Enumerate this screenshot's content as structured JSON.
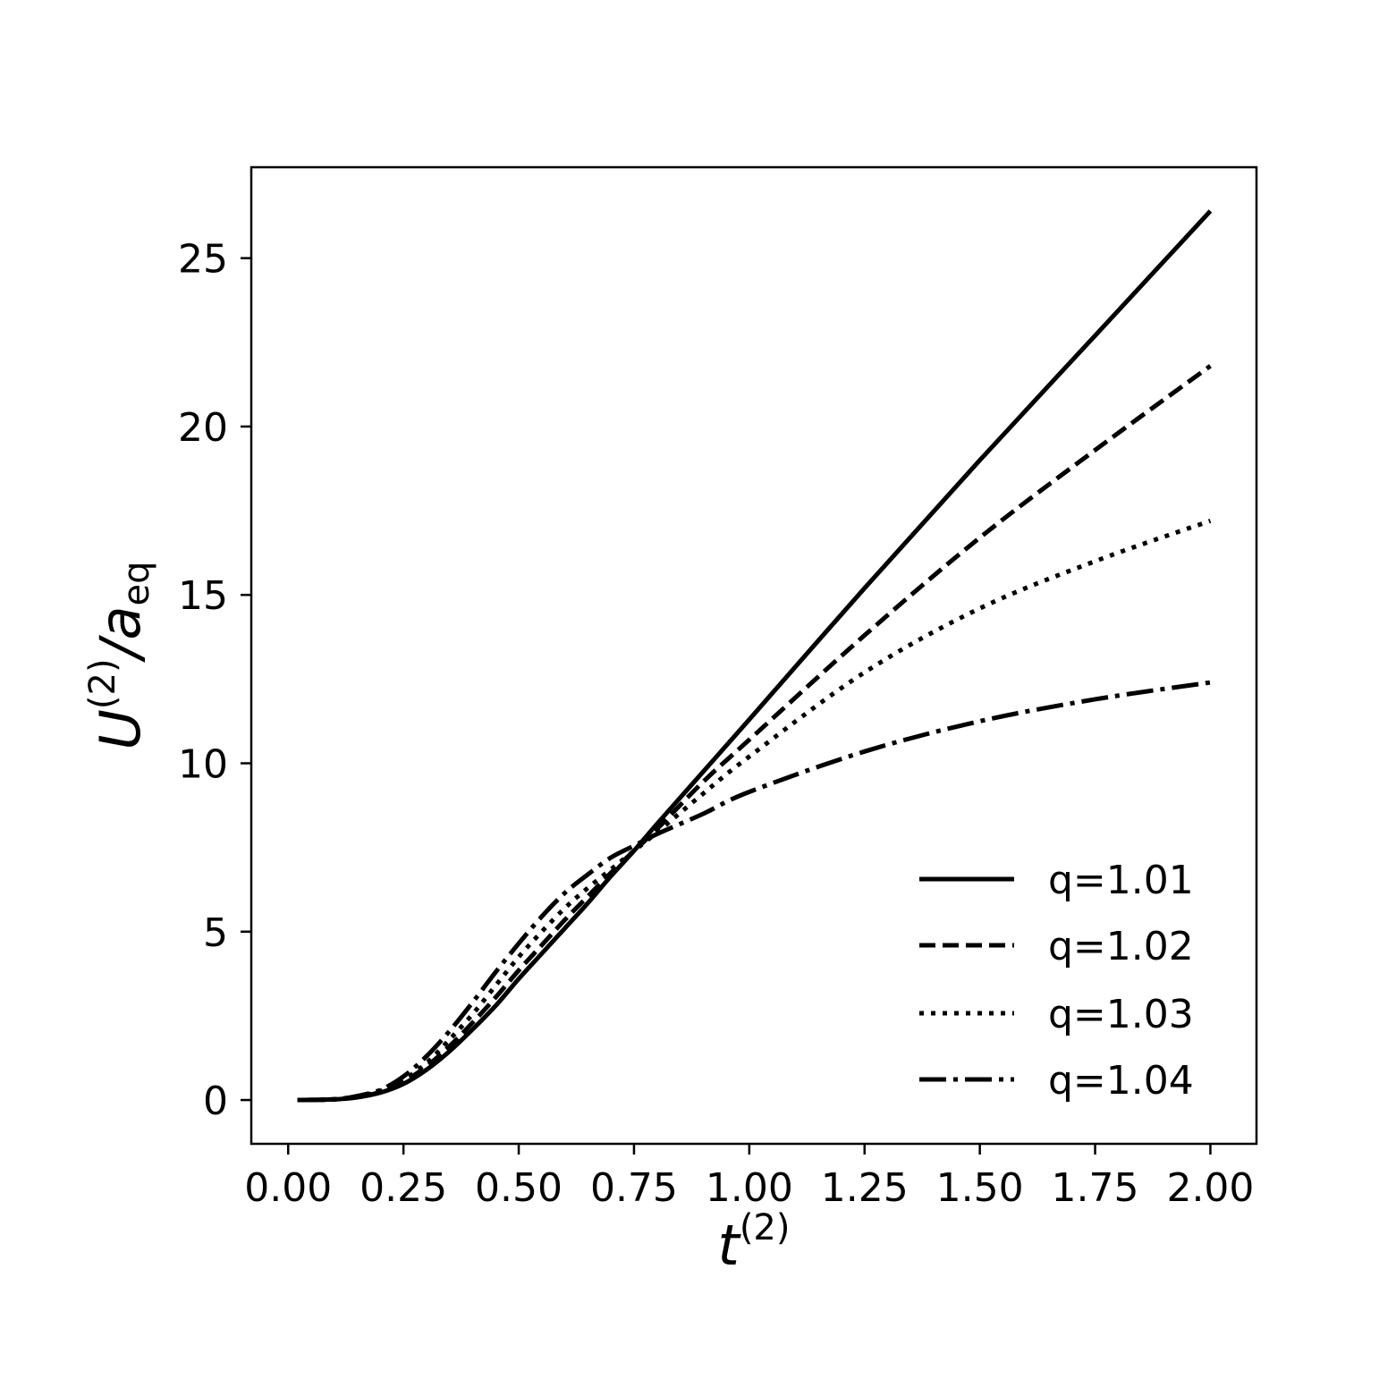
{
  "chart_data": {
    "type": "line",
    "title": "",
    "xlabel": {
      "base": "t",
      "sup": "(2)"
    },
    "ylabel": {
      "base": "U",
      "sup": "(2)",
      "mid": "/a",
      "sub": "eq"
    },
    "xlim": [
      -0.08,
      2.1
    ],
    "ylim": [
      -1.3,
      27.7
    ],
    "xticks": [
      0.0,
      0.25,
      0.5,
      0.75,
      1.0,
      1.25,
      1.5,
      1.75,
      2.0
    ],
    "xtick_labels": [
      "0.00",
      "0.25",
      "0.50",
      "0.75",
      "1.00",
      "1.25",
      "1.50",
      "1.75",
      "2.00"
    ],
    "yticks": [
      0,
      5,
      10,
      15,
      20,
      25
    ],
    "ytick_labels": [
      "0",
      "5",
      "10",
      "15",
      "20",
      "25"
    ],
    "grid": false,
    "legend_position": "lower-right",
    "line_color": "#000000",
    "series": [
      {
        "name": "q=1.01",
        "style": "solid",
        "x": [
          0.02,
          0.1,
          0.15,
          0.2,
          0.25,
          0.3,
          0.35,
          0.4,
          0.45,
          0.5,
          0.55,
          0.6,
          0.65,
          0.7,
          0.75,
          0.8,
          0.9,
          1.0,
          1.25,
          1.5,
          1.75,
          2.0
        ],
        "y": [
          0.0,
          0.02,
          0.08,
          0.22,
          0.48,
          0.9,
          1.45,
          2.1,
          2.8,
          3.6,
          4.35,
          5.1,
          5.85,
          6.65,
          7.4,
          8.2,
          9.75,
          11.3,
          15.2,
          19.0,
          22.7,
          26.4
        ]
      },
      {
        "name": "q=1.02",
        "style": "dashed",
        "x": [
          0.02,
          0.1,
          0.15,
          0.2,
          0.25,
          0.3,
          0.35,
          0.4,
          0.45,
          0.5,
          0.55,
          0.6,
          0.65,
          0.7,
          0.75,
          0.8,
          0.9,
          1.0,
          1.25,
          1.5,
          1.75,
          2.0
        ],
        "y": [
          0.0,
          0.02,
          0.09,
          0.24,
          0.55,
          1.0,
          1.6,
          2.3,
          3.05,
          3.85,
          4.6,
          5.35,
          6.05,
          6.75,
          7.4,
          8.05,
          9.45,
          10.7,
          13.8,
          16.7,
          19.3,
          21.8
        ]
      },
      {
        "name": "q=1.03",
        "style": "dotted",
        "x": [
          0.02,
          0.1,
          0.15,
          0.2,
          0.25,
          0.3,
          0.35,
          0.4,
          0.45,
          0.5,
          0.55,
          0.6,
          0.65,
          0.7,
          0.75,
          0.8,
          0.9,
          1.0,
          1.25,
          1.5,
          1.75,
          2.0
        ],
        "y": [
          0.0,
          0.02,
          0.1,
          0.27,
          0.6,
          1.1,
          1.8,
          2.55,
          3.4,
          4.25,
          5.0,
          5.7,
          6.3,
          6.85,
          7.4,
          7.95,
          9.1,
          10.2,
          12.7,
          14.6,
          16.0,
          17.2
        ]
      },
      {
        "name": "q=1.04",
        "style": "dashdot",
        "x": [
          0.02,
          0.1,
          0.15,
          0.2,
          0.25,
          0.3,
          0.35,
          0.4,
          0.45,
          0.5,
          0.55,
          0.6,
          0.65,
          0.7,
          0.75,
          0.8,
          0.9,
          1.0,
          1.25,
          1.5,
          1.75,
          2.0
        ],
        "y": [
          0.0,
          0.02,
          0.12,
          0.3,
          0.7,
          1.3,
          2.05,
          2.9,
          3.8,
          4.65,
          5.45,
          6.15,
          6.7,
          7.2,
          7.55,
          7.9,
          8.5,
          9.15,
          10.35,
          11.25,
          11.9,
          12.4
        ]
      }
    ]
  }
}
